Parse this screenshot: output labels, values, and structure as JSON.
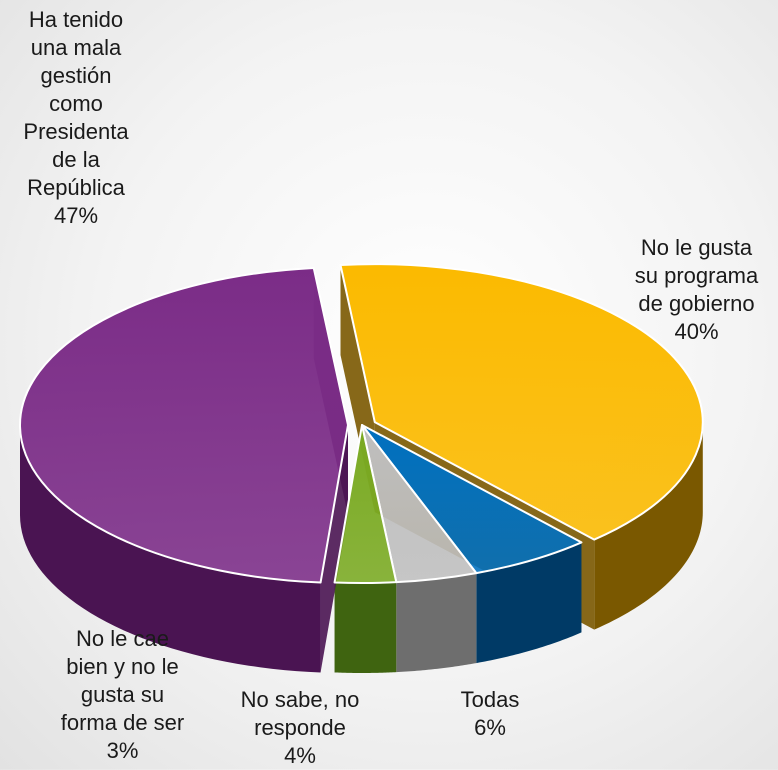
{
  "chart_data": {
    "type": "pie",
    "title": "",
    "slices": [
      {
        "label": "No le gusta su programa de gobierno",
        "value": 40,
        "value_label": "40%",
        "color": "#FBBA00",
        "side_color": "#7A5800"
      },
      {
        "label": "Todas",
        "value": 6,
        "value_label": "6%",
        "color": "#0070C0",
        "side_color": "#003A66"
      },
      {
        "label": "No sabe, no responde",
        "value": 4,
        "value_label": "4%",
        "color": "#BFBFBF",
        "side_color": "#6E6E6E"
      },
      {
        "label": "No le cae bien y no le gusta su forma de ser",
        "value": 3,
        "value_label": "3%",
        "color": "#7AAA22",
        "side_color": "#3F6410"
      },
      {
        "label": "Ha tenido una mala gestión como Presidenta de la República",
        "value": 47,
        "value_label": "47%",
        "color": "#7B2C87",
        "side_color": "#4A1452"
      }
    ]
  },
  "labels": {
    "s0": "No le gusta\nsu programa\nde gobierno\n40%",
    "s1": "Todas\n6%",
    "s2": "No sabe, no\nresponde\n4%",
    "s3": "No le cae\nbien y no le\ngusta su\nforma de ser\n3%",
    "s4": "Ha tenido\nuna mala\ngestión\ncomo\nPresidenta\nde la\nRepública\n47%"
  }
}
